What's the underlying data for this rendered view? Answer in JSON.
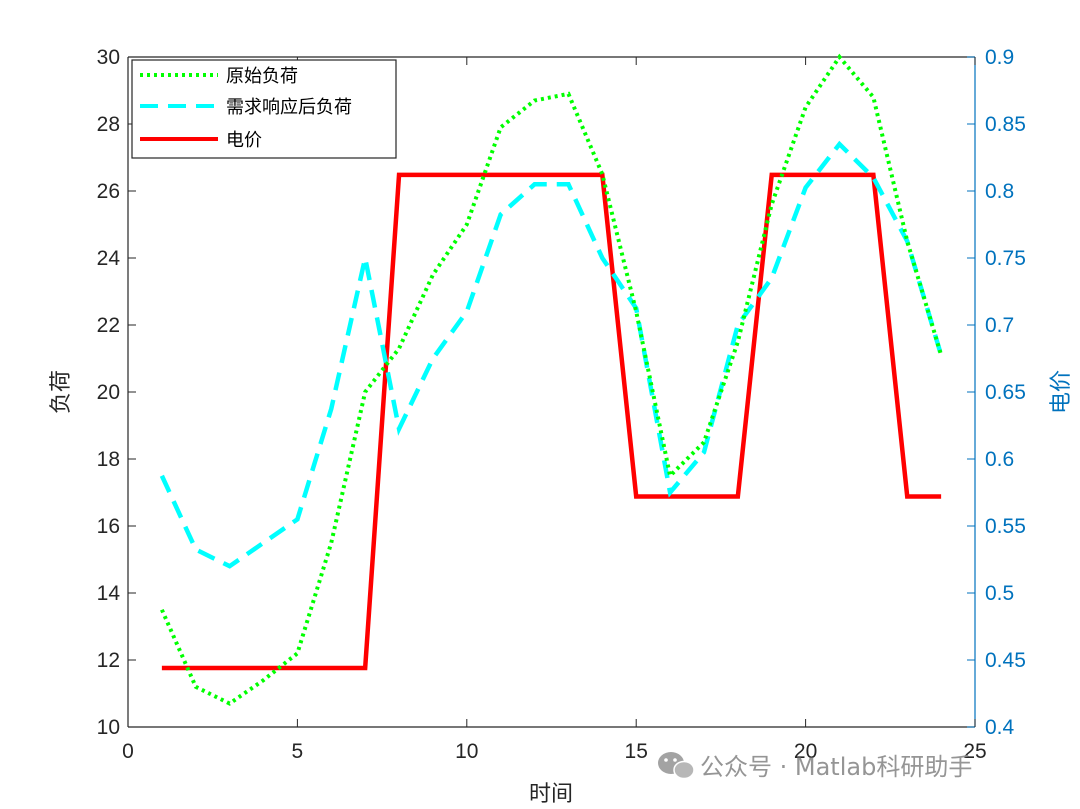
{
  "chart_data": {
    "type": "line",
    "x": [
      1,
      2,
      3,
      4,
      5,
      6,
      7,
      8,
      9,
      10,
      11,
      12,
      13,
      14,
      15,
      16,
      17,
      18,
      19,
      20,
      21,
      22,
      23,
      24
    ],
    "xlabel": "时间",
    "xlim": [
      0,
      25
    ],
    "xticks": [
      "0",
      "5",
      "10",
      "15",
      "20",
      "25"
    ],
    "ylabel": "负荷",
    "ylim": [
      10,
      30
    ],
    "yticks": [
      "10",
      "12",
      "14",
      "16",
      "18",
      "20",
      "22",
      "24",
      "26",
      "28",
      "30"
    ],
    "y2label": "电价",
    "y2lim": [
      0.4,
      0.9
    ],
    "y2ticks": [
      "0.4",
      "0.45",
      "0.5",
      "0.55",
      "0.6",
      "0.65",
      "0.7",
      "0.75",
      "0.8",
      "0.85",
      "0.9"
    ],
    "legend_position": "top-left",
    "series": [
      {
        "name": "原始负荷",
        "axis": "left",
        "color": "#00FF00",
        "style": "dotted",
        "values": [
          13.5,
          11.2,
          10.7,
          11.4,
          12.2,
          15.5,
          20.0,
          21.3,
          23.5,
          25.0,
          27.9,
          28.7,
          28.9,
          26.5,
          22.4,
          17.5,
          18.5,
          21.5,
          25.6,
          28.5,
          30.0,
          28.8,
          24.5,
          21.1
        ]
      },
      {
        "name": "需求响应后负荷",
        "axis": "left",
        "color": "#00FFFF",
        "style": "dashed",
        "values": [
          17.5,
          15.3,
          14.8,
          15.5,
          16.2,
          19.5,
          24.0,
          18.9,
          21.0,
          22.4,
          25.3,
          26.2,
          26.2,
          24.0,
          22.5,
          17.0,
          18.2,
          22.0,
          23.4,
          26.1,
          27.4,
          26.4,
          24.5,
          21.1
        ]
      },
      {
        "name": "电价",
        "axis": "right",
        "color": "#FF0000",
        "style": "solid",
        "values": [
          0.444,
          0.444,
          0.444,
          0.444,
          0.444,
          0.444,
          0.444,
          0.812,
          0.812,
          0.812,
          0.812,
          0.812,
          0.812,
          0.812,
          0.572,
          0.572,
          0.572,
          0.572,
          0.812,
          0.812,
          0.812,
          0.812,
          0.572,
          0.572
        ]
      }
    ],
    "grid": false
  },
  "watermark": {
    "text": "公众号 · Matlab科研助手",
    "icon": "wechat-icon"
  },
  "colors": {
    "right_axis": "#0072BD",
    "left_axis": "#262626"
  }
}
